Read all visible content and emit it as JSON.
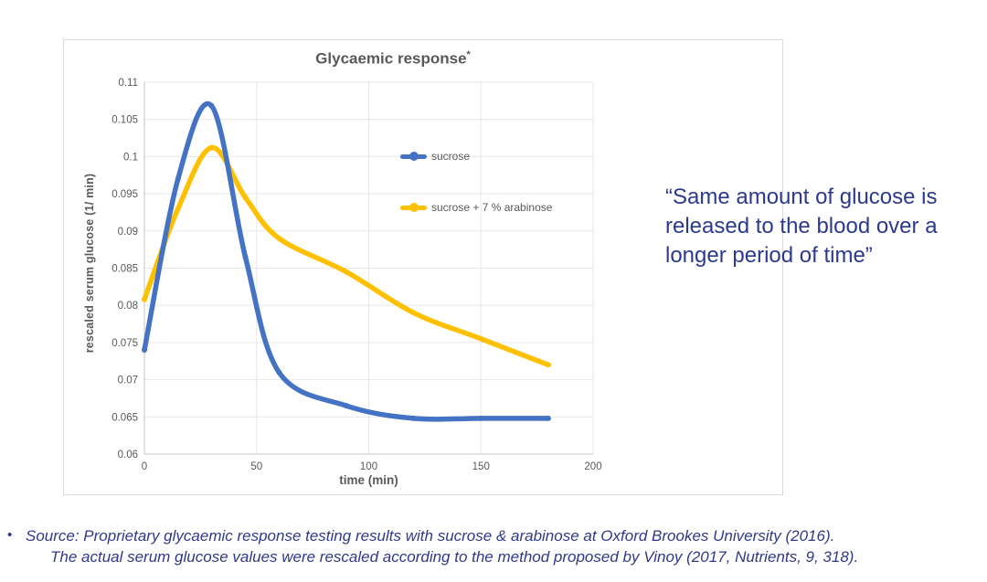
{
  "chart_data": {
    "type": "line",
    "title": "Glycaemic response",
    "title_superscript": "*",
    "xlabel": "time (min)",
    "ylabel": "rescaled serum glucose (1/ min)",
    "x": [
      0,
      15,
      30,
      45,
      60,
      90,
      120,
      150,
      180
    ],
    "series": [
      {
        "name": "sucrose",
        "color": "#4472C4",
        "values": [
          0.074,
          0.097,
          0.1068,
          0.0865,
          0.071,
          0.0665,
          0.0648,
          0.0648,
          0.0648
        ]
      },
      {
        "name": "sucrose + 7 % arabinose",
        "color": "#FFC000",
        "values": [
          0.0808,
          0.093,
          0.1012,
          0.0945,
          0.089,
          0.0845,
          0.079,
          0.0755,
          0.072
        ]
      }
    ],
    "xlim": [
      0,
      200
    ],
    "ylim": [
      0.06,
      0.11
    ],
    "x_ticks": [
      {
        "label": "0",
        "value": 0
      },
      {
        "label": "50",
        "value": 50
      },
      {
        "label": "100",
        "value": 100
      },
      {
        "label": "150",
        "value": 150
      },
      {
        "label": "200",
        "value": 200
      }
    ],
    "y_ticks": [
      {
        "label": "0.11",
        "value": 0.11
      },
      {
        "label": "0.105",
        "value": 0.105
      },
      {
        "label": "0.1",
        "value": 0.1
      },
      {
        "label": "0.095",
        "value": 0.095
      },
      {
        "label": "0.09",
        "value": 0.09
      },
      {
        "label": "0.085",
        "value": 0.085
      },
      {
        "label": "0.08",
        "value": 0.08
      },
      {
        "label": "0.075",
        "value": 0.075
      },
      {
        "label": "0.07",
        "value": 0.07
      },
      {
        "label": "0.065",
        "value": 0.065
      },
      {
        "label": "0.06",
        "value": 0.06
      }
    ],
    "grid": true,
    "legend_position": "inside-right",
    "colors": {
      "axis_text": "#595959",
      "gridline": "#e7e7e7",
      "axis_line": "#c6c6c6"
    }
  },
  "quote": {
    "text": "“Same amount of glucose is\nreleased to the blood over a\nlonger period of time”",
    "color": "#2b3990"
  },
  "source": {
    "bullet": "•",
    "line1": "Source: Proprietary glycaemic response testing results with sucrose & arabinose at Oxford Brookes University (2016).",
    "line2": "The actual serum glucose values were rescaled according to the method proposed by Vinoy (2017, Nutrients, 9, 318)."
  }
}
